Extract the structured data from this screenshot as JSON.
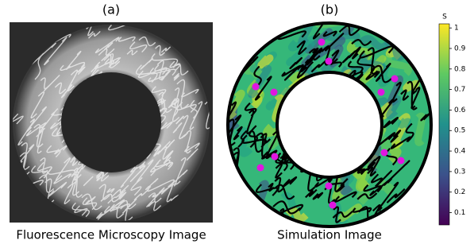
{
  "panel_a": {
    "label": "(a)",
    "caption": "Fluorescence Microscopy Image"
  },
  "panel_b": {
    "label": "(b)",
    "caption": "Simulation Image"
  },
  "colorbar": {
    "label": "S",
    "lim": [
      0.04,
      1.02
    ],
    "ticks": [
      0.1,
      0.2,
      0.3,
      0.4,
      0.5,
      0.6,
      0.7,
      0.8,
      0.9,
      1
    ]
  }
}
